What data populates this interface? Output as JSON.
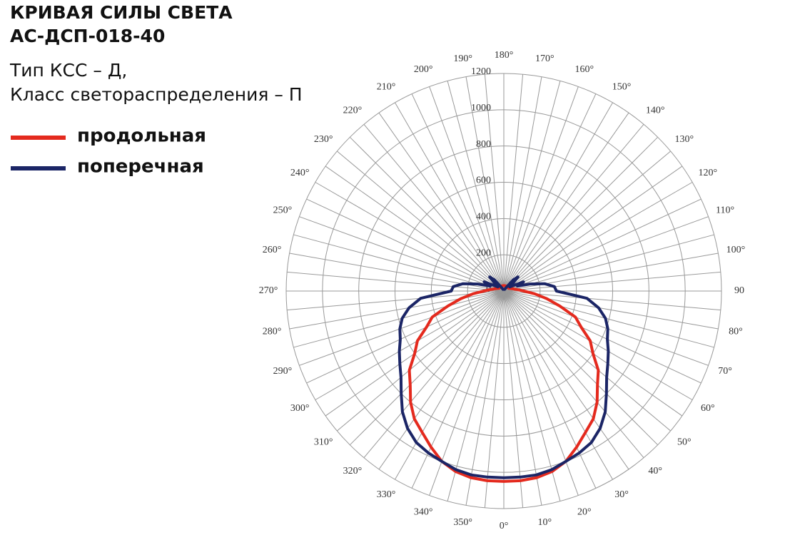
{
  "chart_data": {
    "type": "polar",
    "title": [
      "КРИВАЯ СИЛЫ СВЕТА",
      "АС-ДСП-018-40"
    ],
    "subtitle": [
      "Тип КСС – Д,",
      "Класс светораспределения – П"
    ],
    "theta": [
      0,
      5,
      10,
      15,
      20,
      25,
      30,
      35,
      40,
      45,
      50,
      55,
      60,
      65,
      70,
      75,
      80,
      85,
      90,
      95,
      100,
      105,
      110,
      115,
      120,
      125,
      130,
      135,
      140,
      145,
      150,
      155,
      160,
      165,
      170,
      175,
      180,
      185,
      190,
      195,
      200,
      205,
      210,
      215,
      220,
      225,
      230,
      235,
      240,
      245,
      250,
      255,
      260,
      265,
      270,
      275,
      280,
      285,
      290,
      295,
      300,
      305,
      310,
      315,
      320,
      325,
      330,
      335,
      340,
      345,
      350,
      355
    ],
    "series": [
      {
        "name": "продольная",
        "color": "#e42a1e",
        "values": [
          1050,
          1050,
          1045,
          1030,
          1000,
          950,
          900,
          860,
          800,
          730,
          680,
          600,
          550,
          470,
          420,
          320,
          240,
          170,
          110,
          80,
          60,
          50,
          40,
          35,
          30,
          30,
          30,
          30,
          30,
          30,
          30,
          30,
          30,
          30,
          30,
          30,
          30,
          30,
          30,
          30,
          30,
          30,
          30,
          30,
          30,
          30,
          30,
          30,
          30,
          35,
          40,
          50,
          60,
          80,
          110,
          170,
          240,
          320,
          420,
          470,
          550,
          600,
          680,
          730,
          800,
          860,
          900,
          950,
          1000,
          1030,
          1045,
          1050
        ]
      },
      {
        "name": "поперечная",
        "color": "#1b2566",
        "values": [
          1030,
          1030,
          1030,
          1020,
          1000,
          985,
          965,
          925,
          870,
          800,
          740,
          700,
          665,
          630,
          610,
          580,
          530,
          460,
          290,
          280,
          230,
          150,
          80,
          120,
          60,
          40,
          60,
          110,
          80,
          30,
          15,
          10,
          10,
          10,
          10,
          10,
          10,
          10,
          10,
          10,
          10,
          10,
          15,
          30,
          80,
          110,
          60,
          40,
          60,
          120,
          80,
          150,
          230,
          280,
          290,
          460,
          530,
          580,
          610,
          630,
          665,
          700,
          740,
          800,
          870,
          925,
          965,
          985,
          1000,
          1020,
          1030,
          1030
        ]
      }
    ],
    "rlim": [
      0,
      1200
    ],
    "rticks": [
      0,
      200,
      400,
      600,
      800,
      1000,
      1200
    ],
    "thetaticks": [
      {
        "value": 0,
        "label": "0°"
      },
      {
        "value": 10,
        "label": "10°"
      },
      {
        "value": 20,
        "label": "20°"
      },
      {
        "value": 30,
        "label": "30°"
      },
      {
        "value": 40,
        "label": "40°"
      },
      {
        "value": 50,
        "label": "50°"
      },
      {
        "value": 60,
        "label": "60°"
      },
      {
        "value": 70,
        "label": "70°"
      },
      {
        "value": 80,
        "label": "80°"
      },
      {
        "value": 90,
        "label": "90"
      },
      {
        "value": 100,
        "label": "100°"
      },
      {
        "value": 110,
        "label": "110°"
      },
      {
        "value": 120,
        "label": "120°"
      },
      {
        "value": 130,
        "label": "130°"
      },
      {
        "value": 140,
        "label": "140°"
      },
      {
        "value": 150,
        "label": "150°"
      },
      {
        "value": 160,
        "label": "160°"
      },
      {
        "value": 170,
        "label": "170°"
      },
      {
        "value": 180,
        "label": "180°"
      },
      {
        "value": 190,
        "label": "190°"
      },
      {
        "value": 200,
        "label": "200°"
      },
      {
        "value": 210,
        "label": "210°"
      },
      {
        "value": 220,
        "label": "220°"
      },
      {
        "value": 230,
        "label": "230°"
      },
      {
        "value": 240,
        "label": "240°"
      },
      {
        "value": 250,
        "label": "250°"
      },
      {
        "value": 260,
        "label": "260°"
      },
      {
        "value": 270,
        "label": "270°"
      },
      {
        "value": 280,
        "label": "280°"
      },
      {
        "value": 290,
        "label": "290°"
      },
      {
        "value": 300,
        "label": "300°"
      },
      {
        "value": 310,
        "label": "310°"
      },
      {
        "value": 320,
        "label": "320°"
      },
      {
        "value": 330,
        "label": "330°"
      },
      {
        "value": 340,
        "label": "340°"
      },
      {
        "value": 350,
        "label": "350°"
      }
    ],
    "grid": true
  }
}
